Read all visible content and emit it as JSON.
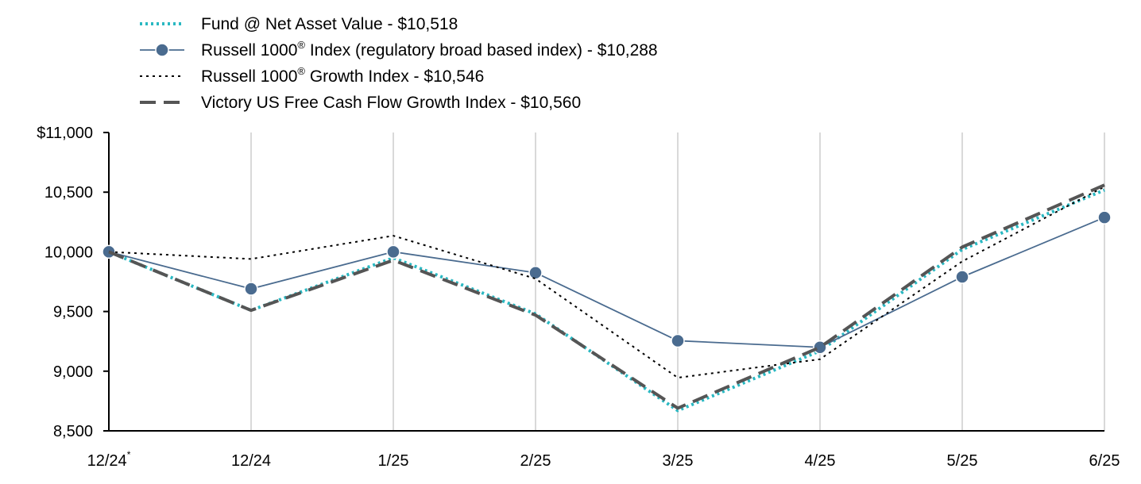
{
  "chart_data": {
    "type": "line",
    "categories": [
      "12/24",
      "12/24",
      "1/25",
      "2/25",
      "3/25",
      "4/25",
      "5/25",
      "6/25"
    ],
    "first_category_marker": "*",
    "ylim": [
      8500,
      11000
    ],
    "yticks": [
      {
        "value": 11000,
        "label": "$11,000"
      },
      {
        "value": 10500,
        "label": "10,500"
      },
      {
        "value": 10000,
        "label": "10,000"
      },
      {
        "value": 9500,
        "label": "9,500"
      },
      {
        "value": 9000,
        "label": "9,000"
      },
      {
        "value": 8500,
        "label": "8,500"
      }
    ],
    "grid": "vertical",
    "legend_position": "top-left",
    "series": [
      {
        "name": "Fund @ Net Asset Value - $10,518",
        "name_parts": [
          "Fund @ Net Asset Value - $10,518"
        ],
        "style": "dotted",
        "color": "#29b8c2",
        "markers": false,
        "values": [
          10000,
          9510,
          9950,
          9480,
          8670,
          9170,
          10020,
          10518
        ]
      },
      {
        "name": "Russell 1000® Index (regulatory broad based index) - $10,288",
        "name_parts": [
          "Russell 1000",
          "®",
          " Index (regulatory broad based index) - $10,288"
        ],
        "style": "solid",
        "color": "#4a6b8f",
        "markers": true,
        "values": [
          10000,
          9690,
          10000,
          9825,
          9255,
          9200,
          9790,
          10288
        ]
      },
      {
        "name": "Russell 1000® Growth Index - $10,546",
        "name_parts": [
          "Russell 1000",
          "®",
          " Growth Index - $10,546"
        ],
        "style": "fine-dotted",
        "color": "#000000",
        "markers": false,
        "values": [
          10000,
          9940,
          10135,
          9775,
          8945,
          9100,
          9920,
          10546
        ]
      },
      {
        "name": "Victory US Free Cash Flow Growth Index - $10,560",
        "name_parts": [
          "Victory US Free Cash Flow Growth Index - $10,560"
        ],
        "style": "dashed",
        "color": "#555555",
        "markers": false,
        "values": [
          10000,
          9510,
          9930,
          9470,
          8690,
          9200,
          10040,
          10560
        ]
      }
    ]
  }
}
